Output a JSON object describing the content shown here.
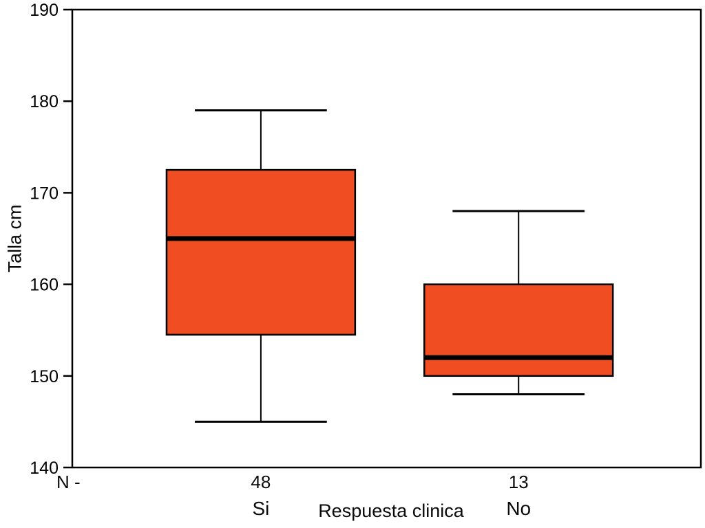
{
  "chart_data": {
    "type": "boxplot",
    "title": "",
    "xlabel": "Respuesta clinica",
    "ylabel": "Talla cm",
    "ylim": [
      140,
      190
    ],
    "yticks": [
      140,
      150,
      160,
      170,
      180,
      190
    ],
    "grid": false,
    "legend": "none",
    "n_prefix": "N -",
    "categories": [
      "Si",
      "No"
    ],
    "series": [
      {
        "name": "Si",
        "n": 48,
        "whisker_low": 145,
        "q1": 154.5,
        "median": 165,
        "q3": 172.5,
        "whisker_high": 179
      },
      {
        "name": "No",
        "n": 13,
        "whisker_low": 148,
        "q1": 150,
        "median": 152,
        "q3": 160,
        "whisker_high": 168
      }
    ],
    "box_color": "#f04d23",
    "line_color": "#000000",
    "background_color": "#ffffff"
  }
}
